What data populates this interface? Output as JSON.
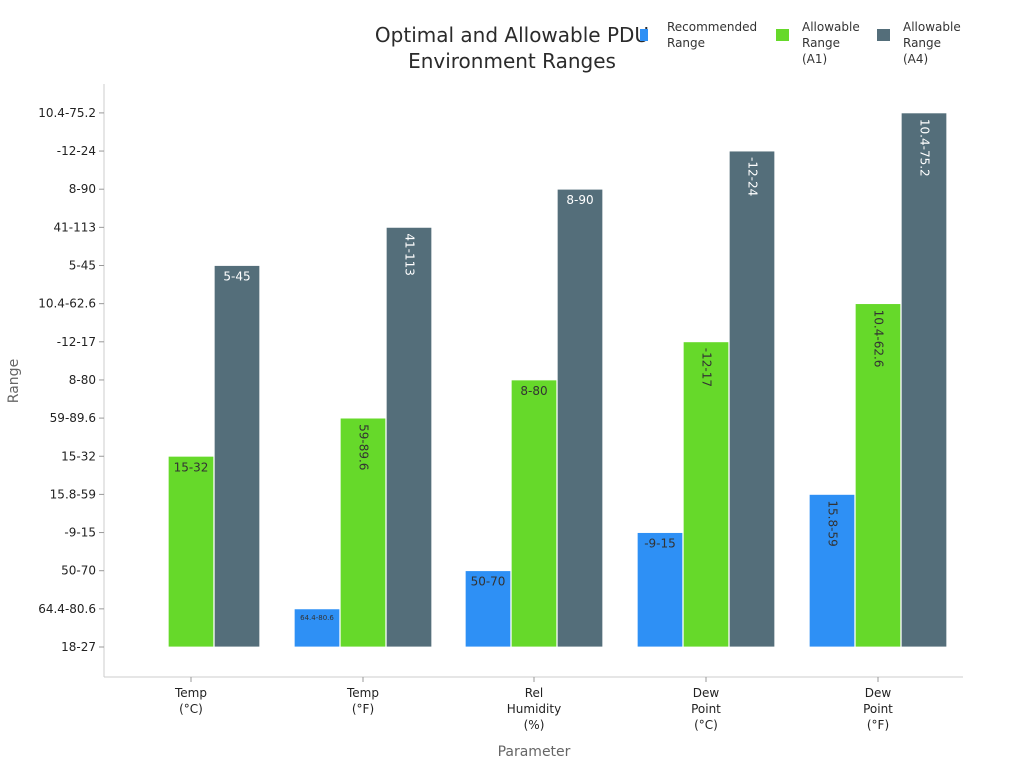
{
  "chart_data": {
    "type": "bar",
    "title": [
      "Optimal and Allowable PDU",
      "Environment Ranges"
    ],
    "xlabel": "Parameter",
    "ylabel": "Range",
    "categories": [
      [
        "Temp",
        "(°C)"
      ],
      [
        "Temp",
        "(°F)"
      ],
      [
        "Rel",
        "Humidity",
        "(%)"
      ],
      [
        "Dew",
        "Point",
        "(°C)"
      ],
      [
        "Dew",
        "Point",
        "(°F)"
      ]
    ],
    "y_ticks": [
      "18-27",
      "64.4-80.6",
      "50-70",
      "-9-15",
      "15.8-59",
      "15-32",
      "59-89.6",
      "8-80",
      "-12-17",
      "10.4-62.6",
      "5-45",
      "41-113",
      "8-90",
      "-12-24",
      "10.4-75.2"
    ],
    "ylim": [
      -0.8,
      14.7
    ],
    "legend": {
      "placement": "top-right"
    },
    "grid": false,
    "series": [
      {
        "name": [
          "Recommended",
          "Range"
        ],
        "color": "#2E90F5",
        "values": [
          null,
          1,
          2,
          3,
          4
        ],
        "labels": [
          "18-27",
          "64.4-80.6",
          "50-70",
          "-9-15",
          "15.8-59"
        ],
        "label_rotated": [
          false,
          false,
          false,
          false,
          true
        ]
      },
      {
        "name": [
          "Allowable",
          "Range",
          "(A1)"
        ],
        "color": "#66D92A",
        "values": [
          5,
          6,
          7,
          8,
          9
        ],
        "labels": [
          "15-32",
          "59-89.6",
          "8-80",
          "-12-17",
          "10.4-62.6"
        ],
        "label_rotated": [
          false,
          true,
          false,
          true,
          true
        ]
      },
      {
        "name": [
          "Allowable",
          "Range",
          "(A4)"
        ],
        "color": "#546E7A",
        "values": [
          10,
          11,
          12,
          13,
          14
        ],
        "labels": [
          "5-45",
          "41-113",
          "8-90",
          "-12-24",
          "10.4-75.2"
        ],
        "label_rotated": [
          false,
          true,
          false,
          true,
          true
        ]
      }
    ]
  }
}
